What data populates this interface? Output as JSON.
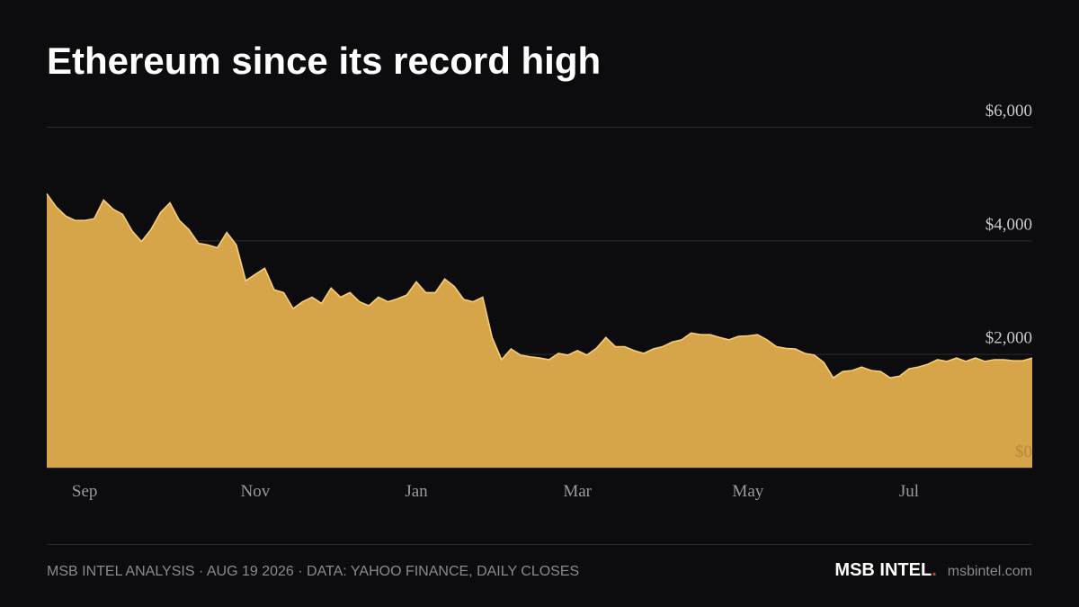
{
  "chart_data": {
    "type": "area",
    "title": "Ethereum since its record high",
    "categories": [
      null,
      null,
      null,
      null,
      "Sep",
      null,
      null,
      null,
      null,
      null,
      null,
      null,
      null,
      null,
      null,
      null,
      null,
      null,
      null,
      null,
      null,
      null,
      "Nov",
      null,
      null,
      null,
      null,
      null,
      null,
      null,
      null,
      null,
      null,
      null,
      null,
      null,
      null,
      null,
      null,
      "Jan",
      null,
      null,
      null,
      null,
      null,
      null,
      null,
      null,
      null,
      null,
      null,
      null,
      null,
      null,
      null,
      null,
      "Mar",
      null,
      null,
      null,
      null,
      null,
      null,
      null,
      null,
      null,
      null,
      null,
      null,
      null,
      null,
      null,
      null,
      null,
      "May",
      null,
      null,
      null,
      null,
      null,
      null,
      null,
      null,
      null,
      null,
      null,
      null,
      null,
      null,
      null,
      null,
      "Jul",
      null,
      null,
      null,
      null,
      null,
      null,
      null,
      null,
      null,
      null,
      null,
      null,
      null
    ],
    "values": [
      4820,
      4590,
      4430,
      4350,
      4350,
      4380,
      4710,
      4550,
      4460,
      4170,
      3980,
      4190,
      4490,
      4660,
      4350,
      4190,
      3950,
      3920,
      3870,
      4140,
      3920,
      3290,
      3400,
      3510,
      3130,
      3080,
      2800,
      2920,
      3000,
      2890,
      3160,
      3000,
      3080,
      2920,
      2850,
      3000,
      2920,
      2970,
      3040,
      3270,
      3080,
      3080,
      3320,
      3190,
      2960,
      2920,
      3000,
      2290,
      1900,
      2090,
      1980,
      1950,
      1930,
      1900,
      2010,
      1980,
      2060,
      1980,
      2100,
      2290,
      2130,
      2130,
      2060,
      2010,
      2090,
      2130,
      2210,
      2250,
      2370,
      2340,
      2340,
      2290,
      2250,
      2310,
      2320,
      2340,
      2250,
      2130,
      2100,
      2090,
      2010,
      1980,
      1850,
      1580,
      1690,
      1710,
      1770,
      1710,
      1690,
      1580,
      1610,
      1740,
      1770,
      1820,
      1900,
      1870,
      1930,
      1870,
      1930,
      1870,
      1900,
      1900,
      1880,
      1880,
      1930
    ],
    "color": "#d6a54a",
    "line_color": "#f7cd75",
    "ylim": [
      0,
      6000
    ],
    "yticks": [
      {
        "value": 0,
        "label": "$0"
      },
      {
        "value": 2000,
        "label": "$2,000"
      },
      {
        "value": 4000,
        "label": "$4,000"
      },
      {
        "value": 6000,
        "label": "$6,000"
      }
    ],
    "grid": true
  },
  "footer": {
    "source": "MSB INTEL ANALYSIS · AUG 19 2026 · DATA: YAHOO FINANCE, DAILY CLOSES",
    "brand": "MSB INTEL",
    "brand_dot": ".",
    "site": "msbintel.com"
  }
}
